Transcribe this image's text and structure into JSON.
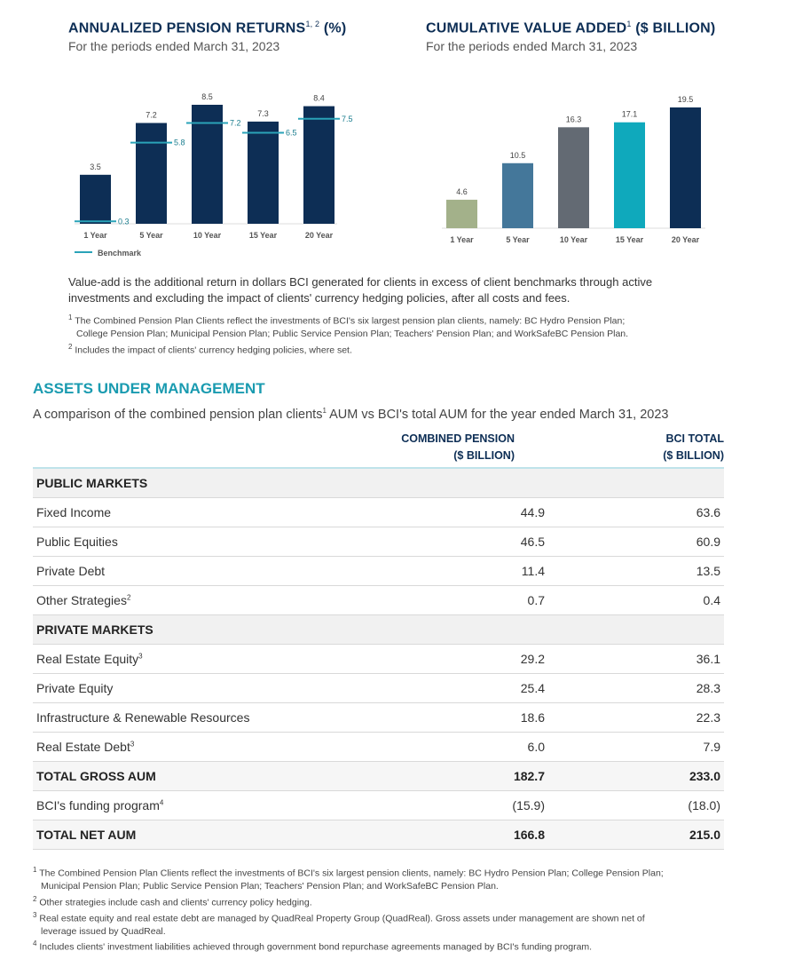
{
  "left_chart": {
    "title": "ANNUALIZED PENSION RETURNS",
    "title_sup": "1, 2",
    "title_unit": "(%)",
    "subtitle": "For the periods ended March 31, 2023",
    "legend": "Benchmark"
  },
  "right_chart": {
    "title": "CUMULATIVE VALUE ADDED",
    "title_sup": "1",
    "title_unit": "($ BILLION)",
    "subtitle": "For the periods ended March 31, 2023"
  },
  "chart_data": [
    {
      "type": "bar",
      "title": "ANNUALIZED PENSION RETURNS (%)",
      "categories": [
        "1 Year",
        "5 Year",
        "10 Year",
        "15 Year",
        "20 Year"
      ],
      "series": [
        {
          "values": [
            3.5,
            7.2,
            8.5,
            7.3,
            8.4
          ],
          "color": "#0d2e55"
        },
        {
          "name": "Benchmark",
          "values": [
            0.3,
            5.8,
            7.2,
            6.5,
            7.5
          ],
          "color": "#2aa3b8",
          "marker": "line"
        }
      ],
      "ylim": [
        0,
        9
      ],
      "grid": false,
      "legend": "bottom-left"
    },
    {
      "type": "bar",
      "title": "CUMULATIVE VALUE ADDED ($ BILLION)",
      "categories": [
        "1 Year",
        "5 Year",
        "10 Year",
        "15 Year",
        "20 Year"
      ],
      "values": [
        4.6,
        10.5,
        16.3,
        17.1,
        19.5
      ],
      "colors": [
        "#a3b18a",
        "#44779a",
        "#636a73",
        "#0fa9bc",
        "#0d2e55"
      ],
      "ylim": [
        0,
        20
      ],
      "grid": false
    }
  ],
  "value_add_text": "Value-add is the additional return in dollars BCI generated for clients in excess of client benchmarks through active investments and excluding the impact of clients' currency hedging policies, after all costs and fees.",
  "chart_footnotes": [
    {
      "mark": "1",
      "line1": "The Combined Pension Plan Clients reflect the investments of BCI's six largest pension plan clients, namely: BC Hydro Pension Plan;",
      "line2": "College Pension Plan; Municipal Pension Plan; Public Service Pension Plan; Teachers' Pension Plan; and WorkSafeBC Pension Plan."
    },
    {
      "mark": "2",
      "line1": "Includes the impact of clients' currency hedging policies, where set.",
      "line2": ""
    }
  ],
  "aum": {
    "title": "ASSETS UNDER MANAGEMENT",
    "subtitle_a": "A comparison of the combined pension plan clients",
    "subtitle_sup": "1",
    "subtitle_b": " AUM vs BCI's total AUM for the year ended March 31, 2023",
    "col2_l1": "COMBINED PENSION",
    "col2_l2": "($ BILLION)",
    "col3_l1": "BCI TOTAL",
    "col3_l2": "($ BILLION)",
    "rows": [
      {
        "label": "PUBLIC MARKETS",
        "sup": "",
        "c": "",
        "b": "",
        "kind": "head"
      },
      {
        "label": "Fixed Income",
        "sup": "",
        "c": "44.9",
        "b": "63.6",
        "kind": ""
      },
      {
        "label": "Public Equities",
        "sup": "",
        "c": "46.5",
        "b": "60.9",
        "kind": ""
      },
      {
        "label": "Private Debt",
        "sup": "",
        "c": "11.4",
        "b": "13.5",
        "kind": ""
      },
      {
        "label": "Other Strategies",
        "sup": "2",
        "c": "0.7",
        "b": "0.4",
        "kind": ""
      },
      {
        "label": "PRIVATE MARKETS",
        "sup": "",
        "c": "",
        "b": "",
        "kind": "head"
      },
      {
        "label": "Real Estate Equity",
        "sup": "3",
        "c": "29.2",
        "b": "36.1",
        "kind": ""
      },
      {
        "label": "Private Equity",
        "sup": "",
        "c": "25.4",
        "b": "28.3",
        "kind": ""
      },
      {
        "label": "Infrastructure & Renewable Resources",
        "sup": "",
        "c": "18.6",
        "b": "22.3",
        "kind": ""
      },
      {
        "label": "Real Estate Debt",
        "sup": "3",
        "c": "6.0",
        "b": "7.9",
        "kind": ""
      },
      {
        "label": "TOTAL GROSS AUM",
        "sup": "",
        "c": "182.7",
        "b": "233.0",
        "kind": "tot"
      },
      {
        "label": "BCI's funding program",
        "sup": "4",
        "c": "(15.9)",
        "b": "(18.0)",
        "kind": ""
      },
      {
        "label": "TOTAL NET AUM",
        "sup": "",
        "c": "166.8",
        "b": "215.0",
        "kind": "tot"
      }
    ],
    "footnotes": [
      {
        "mark": "1",
        "line1": "The Combined Pension Plan Clients reflect the investments of BCI's six largest pension clients, namely: BC Hydro Pension Plan; College Pension Plan;",
        "line2": "Municipal Pension Plan; Public Service Pension Plan; Teachers' Pension Plan; and WorkSafeBC Pension Plan."
      },
      {
        "mark": "2",
        "line1": "Other strategies include cash and clients' currency policy hedging.",
        "line2": ""
      },
      {
        "mark": "3",
        "line1": "Real estate equity and real estate debt are managed by QuadReal Property Group (QuadReal). Gross assets under management are shown net of",
        "line2": "leverage issued by QuadReal."
      },
      {
        "mark": "4",
        "line1": "Includes clients' investment liabilities achieved through government bond repurchase agreements managed by BCI's funding program.",
        "line2": ""
      }
    ]
  }
}
